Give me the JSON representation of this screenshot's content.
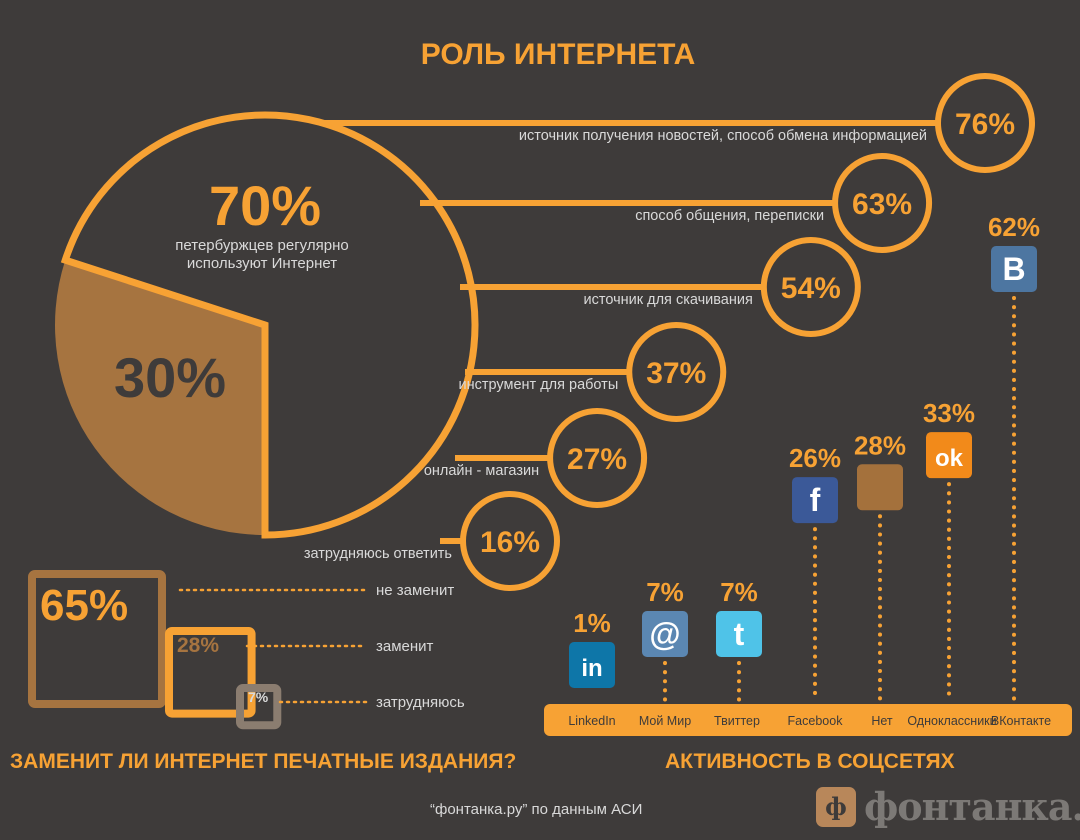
{
  "title": "РОЛЬ ИНТЕРНЕТА",
  "colors": {
    "background": "#3e3b3a",
    "accent": "#f7a234",
    "brown": "#a67440",
    "dark": "#3e3b3a",
    "text": "#d9d9d9"
  },
  "chart_data": [
    {
      "type": "pie",
      "slices": [
        {
          "value": 70,
          "label": "70%",
          "caption": [
            "петербуржцев регулярно",
            "используют Интернет"
          ]
        },
        {
          "value": 30,
          "label": "30%"
        }
      ]
    },
    {
      "type": "bar",
      "orientation": "horizontal",
      "categories": [
        "источник получения новостей, способ обмена информацией",
        "способ общения, переписки",
        "источник для скачивания",
        "инструмент для работы",
        "онлайн - магазин",
        "затрудняюсь ответить"
      ],
      "values": [
        76,
        63,
        54,
        37,
        27,
        16
      ],
      "value_labels": [
        "76%",
        "63%",
        "54%",
        "37%",
        "27%",
        "16%"
      ]
    },
    {
      "type": "bar",
      "title": "ЗАМЕНИТ ЛИ ИНТЕРНЕТ ПЕЧАТНЫЕ ИЗДАНИЯ?",
      "categories": [
        "не заменит",
        "заменит",
        "затрудняюсь"
      ],
      "values": [
        65,
        28,
        7
      ],
      "value_labels": [
        "65%",
        "28%",
        "7%"
      ]
    },
    {
      "type": "bar",
      "title": "АКТИВНОСТЬ В СОЦСЕТЯХ",
      "categories": [
        "LinkedIn",
        "Мой Мир",
        "Твиттер",
        "Facebook",
        "Нет",
        "Одноклассники",
        "ВКонтакте"
      ],
      "values": [
        1,
        7,
        7,
        26,
        28,
        33,
        62
      ],
      "value_labels": [
        "1%",
        "7%",
        "7%",
        "26%",
        "28%",
        "33%",
        "62%"
      ],
      "icons": [
        "linkedin-icon",
        "mail-ru-icon",
        "twitter-icon",
        "facebook-icon",
        "none-square-icon",
        "odnoklassniki-icon",
        "vkontakte-icon"
      ],
      "icon_glyphs": [
        "in",
        "@",
        "t",
        "f",
        "",
        "ok",
        "B"
      ],
      "icon_colors": [
        "#0e76a8",
        "#5b87b2",
        "#4fc3e8",
        "#3b5998",
        "#a4713c",
        "#f28a1a",
        "#4d76a1"
      ]
    }
  ],
  "press_title": "ЗАМЕНИТ ЛИ ИНТЕРНЕТ ПЕЧАТНЫЕ ИЗДАНИЯ?",
  "social_title": "АКТИВНОСТЬ В СОЦСЕТЯХ",
  "source_note": "“фонтанка.ру” по данным АСИ",
  "logo": {
    "text": "фонтанка.ру"
  }
}
